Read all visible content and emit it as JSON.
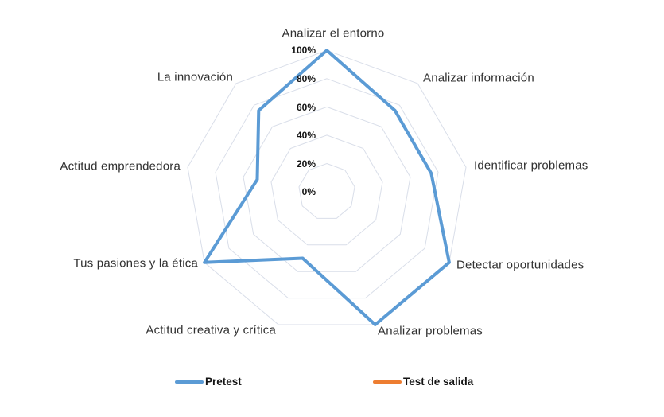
{
  "chart_data": {
    "type": "radar",
    "title": "",
    "categories": [
      "Analizar el entorno",
      "Analizar información",
      "Identificar problemas",
      "Detectar oportunidades",
      "Analizar problemas",
      "Actitud creativa y crítica",
      "Tus pasiones y la ética",
      "Actitud emprendedora",
      "La innovación"
    ],
    "series": [
      {
        "name": "Pretest",
        "color": "#5B9BD5",
        "values": [
          100,
          75,
          75,
          100,
          100,
          50,
          100,
          50,
          75
        ]
      },
      {
        "name": "Test de salida",
        "color": "#ED7D31",
        "values": []
      }
    ],
    "radial_ticks": [
      "0%",
      "20%",
      "40%",
      "60%",
      "80%",
      "100%"
    ],
    "rlim": [
      0,
      100
    ],
    "grid": true,
    "gridline_color": "#D9DEE9",
    "legend_position": "bottom"
  }
}
